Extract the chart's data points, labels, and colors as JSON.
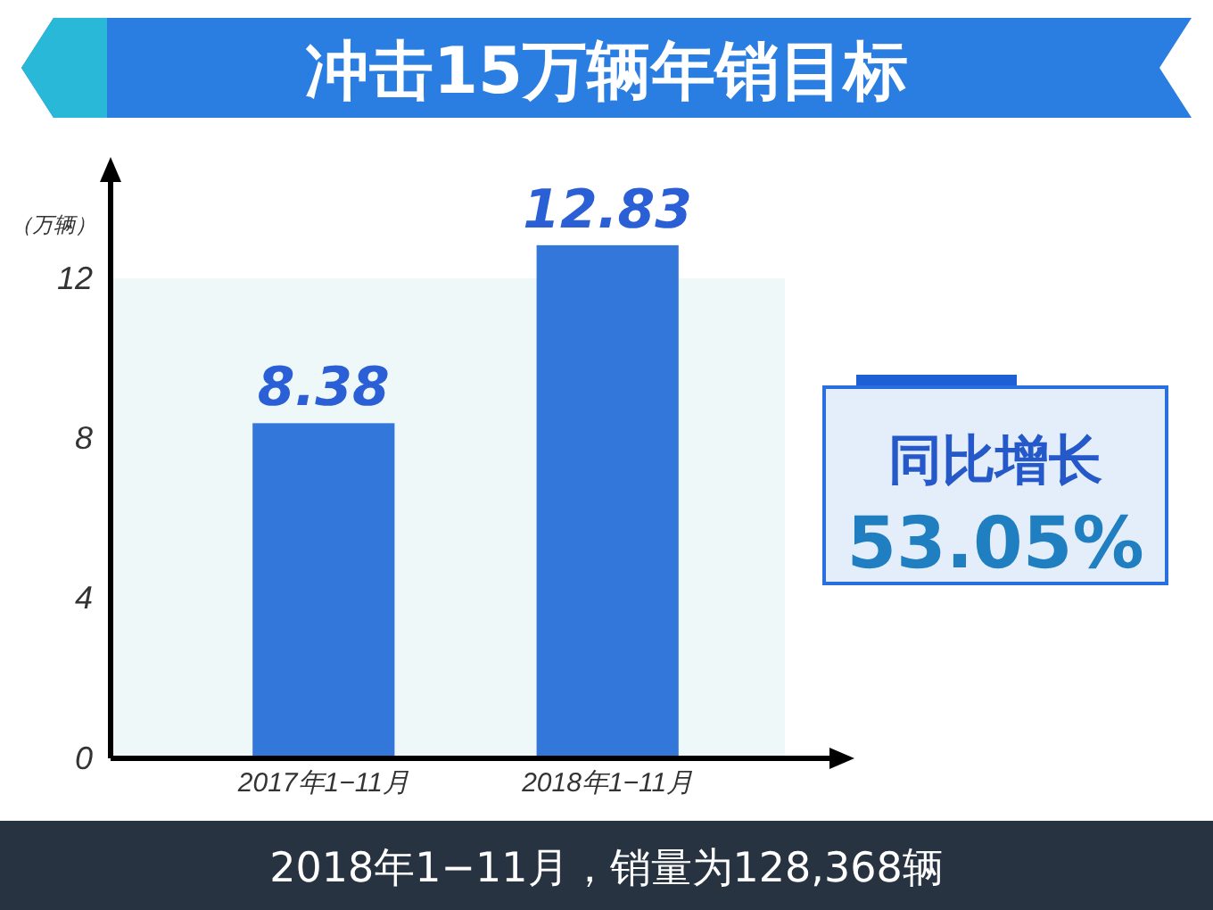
{
  "chart_data": {
    "type": "bar",
    "title": "冲击15万辆年销目标",
    "ylabel": "（万辆）",
    "categories": [
      "2017年1−11月",
      "2018年1−11月"
    ],
    "values": [
      8.38,
      12.83
    ],
    "color": "#3477db",
    "ylim": [
      0,
      14.5
    ],
    "bands": [
      {
        "axis": "y",
        "from": 0,
        "to": 12,
        "color": "#eef8f8"
      }
    ],
    "yticks": [
      0,
      4,
      8,
      12
    ],
    "grid": false,
    "data_labels": true,
    "annotations": [
      "同比增长",
      "53.05%",
      "2018年1−11月，销量为128,368辆"
    ]
  }
}
